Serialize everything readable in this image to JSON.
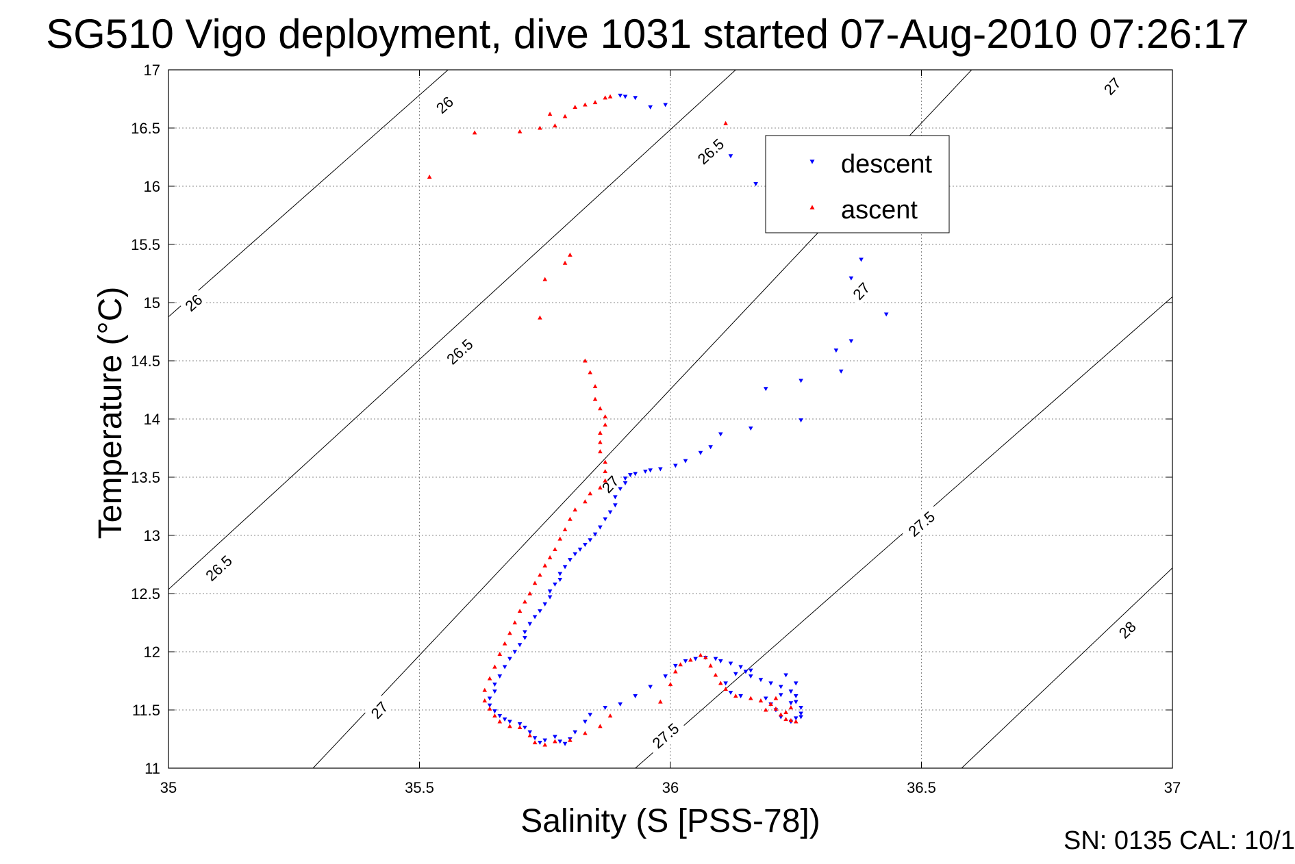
{
  "chart_data": {
    "type": "scatter",
    "title": "SG510 Vigo deployment, dive 1031 started 07-Aug-2010 07:26:17",
    "xlabel": "Salinity (S [PSS-78])",
    "ylabel": "Temperature (°C)",
    "xlim": [
      35,
      37
    ],
    "ylim": [
      11,
      17
    ],
    "xticks": [
      "35",
      "35.5",
      "36",
      "36.5",
      "37"
    ],
    "yticks": [
      "11",
      "11.5",
      "12",
      "12.5",
      "13",
      "13.5",
      "14",
      "14.5",
      "15",
      "15.5",
      "16",
      "16.5",
      "17"
    ],
    "grid": true,
    "legend": {
      "position": "top-right",
      "entries": [
        "descent",
        "ascent"
      ]
    },
    "series": [
      {
        "name": "descent",
        "marker": "triangle-down",
        "color": "#0000ff",
        "points": [
          [
            35.9,
            16.78
          ],
          [
            35.91,
            16.77
          ],
          [
            35.93,
            16.76
          ],
          [
            35.96,
            16.68
          ],
          [
            35.99,
            16.7
          ],
          [
            36.12,
            16.26
          ],
          [
            36.17,
            16.02
          ],
          [
            36.38,
            15.37
          ],
          [
            36.36,
            15.21
          ],
          [
            36.43,
            14.9
          ],
          [
            36.36,
            14.67
          ],
          [
            36.33,
            14.59
          ],
          [
            36.34,
            14.41
          ],
          [
            36.26,
            14.33
          ],
          [
            36.19,
            14.26
          ],
          [
            36.26,
            13.99
          ],
          [
            36.16,
            13.92
          ],
          [
            36.1,
            13.87
          ],
          [
            36.08,
            13.76
          ],
          [
            36.06,
            13.71
          ],
          [
            36.03,
            13.64
          ],
          [
            36.01,
            13.6
          ],
          [
            35.98,
            13.57
          ],
          [
            35.96,
            13.56
          ],
          [
            35.95,
            13.55
          ],
          [
            35.93,
            13.53
          ],
          [
            35.92,
            13.52
          ],
          [
            35.91,
            13.49
          ],
          [
            35.91,
            13.45
          ],
          [
            35.9,
            13.4
          ],
          [
            35.89,
            13.33
          ],
          [
            35.89,
            13.26
          ],
          [
            35.88,
            13.2
          ],
          [
            35.87,
            13.14
          ],
          [
            35.86,
            13.07
          ],
          [
            35.85,
            13.01
          ],
          [
            35.84,
            12.96
          ],
          [
            35.83,
            12.92
          ],
          [
            35.82,
            12.88
          ],
          [
            35.81,
            12.84
          ],
          [
            35.8,
            12.79
          ],
          [
            35.79,
            12.73
          ],
          [
            35.78,
            12.67
          ],
          [
            35.78,
            12.62
          ],
          [
            35.77,
            12.58
          ],
          [
            35.76,
            12.52
          ],
          [
            35.76,
            12.47
          ],
          [
            35.75,
            12.41
          ],
          [
            35.74,
            12.35
          ],
          [
            35.73,
            12.3
          ],
          [
            35.72,
            12.24
          ],
          [
            35.71,
            12.17
          ],
          [
            35.71,
            12.12
          ],
          [
            35.7,
            12.06
          ],
          [
            35.69,
            12.0
          ],
          [
            35.68,
            11.94
          ],
          [
            35.67,
            11.87
          ],
          [
            35.66,
            11.79
          ],
          [
            35.65,
            11.72
          ],
          [
            35.65,
            11.66
          ],
          [
            35.64,
            11.6
          ],
          [
            35.64,
            11.54
          ],
          [
            35.65,
            11.49
          ],
          [
            35.66,
            11.45
          ],
          [
            35.67,
            11.42
          ],
          [
            35.68,
            11.4
          ],
          [
            35.7,
            11.38
          ],
          [
            35.71,
            11.35
          ],
          [
            35.72,
            11.31
          ],
          [
            35.73,
            11.26
          ],
          [
            35.74,
            11.22
          ],
          [
            35.75,
            11.24
          ],
          [
            35.77,
            11.27
          ],
          [
            35.78,
            11.23
          ],
          [
            35.79,
            11.21
          ],
          [
            35.8,
            11.25
          ],
          [
            35.81,
            11.31
          ],
          [
            35.83,
            11.4
          ],
          [
            35.84,
            11.46
          ],
          [
            35.87,
            11.52
          ],
          [
            35.9,
            11.55
          ],
          [
            35.93,
            11.62
          ],
          [
            35.96,
            11.7
          ],
          [
            35.99,
            11.79
          ],
          [
            36.01,
            11.88
          ],
          [
            36.03,
            11.92
          ],
          [
            36.05,
            11.94
          ],
          [
            36.07,
            11.95
          ],
          [
            36.09,
            11.94
          ],
          [
            36.1,
            11.92
          ],
          [
            36.12,
            11.9
          ],
          [
            36.14,
            11.87
          ],
          [
            36.15,
            11.83
          ],
          [
            36.16,
            11.79
          ],
          [
            36.18,
            11.76
          ],
          [
            36.2,
            11.73
          ],
          [
            36.22,
            11.7
          ],
          [
            36.24,
            11.66
          ],
          [
            36.25,
            11.62
          ],
          [
            36.25,
            11.57
          ],
          [
            36.26,
            11.52
          ],
          [
            36.26,
            11.47
          ],
          [
            36.25,
            11.43
          ],
          [
            36.24,
            11.4
          ],
          [
            36.22,
            11.44
          ],
          [
            36.21,
            11.5
          ],
          [
            36.2,
            11.55
          ],
          [
            36.19,
            11.6
          ],
          [
            36.14,
            11.62
          ],
          [
            36.12,
            11.65
          ],
          [
            36.11,
            11.73
          ],
          [
            36.13,
            11.81
          ],
          [
            36.16,
            11.84
          ],
          [
            36.23,
            11.8
          ],
          [
            36.25,
            11.73
          ],
          [
            36.22,
            11.63
          ],
          [
            36.24,
            11.56
          ],
          [
            36.26,
            11.44
          ]
        ]
      },
      {
        "name": "ascent",
        "marker": "triangle-up",
        "color": "#ff0000",
        "points": [
          [
            35.52,
            16.08
          ],
          [
            35.61,
            16.46
          ],
          [
            35.7,
            16.47
          ],
          [
            35.74,
            16.5
          ],
          [
            35.77,
            16.52
          ],
          [
            35.76,
            16.62
          ],
          [
            35.79,
            16.6
          ],
          [
            35.81,
            16.68
          ],
          [
            35.83,
            16.7
          ],
          [
            35.85,
            16.72
          ],
          [
            35.87,
            16.76
          ],
          [
            35.88,
            16.77
          ],
          [
            36.11,
            16.54
          ],
          [
            35.8,
            15.41
          ],
          [
            35.79,
            15.34
          ],
          [
            35.75,
            15.2
          ],
          [
            35.74,
            14.87
          ],
          [
            35.83,
            14.5
          ],
          [
            35.84,
            14.4
          ],
          [
            35.85,
            14.28
          ],
          [
            35.85,
            14.17
          ],
          [
            35.86,
            14.09
          ],
          [
            35.87,
            14.02
          ],
          [
            35.87,
            13.95
          ],
          [
            35.86,
            13.88
          ],
          [
            35.86,
            13.8
          ],
          [
            35.86,
            13.72
          ],
          [
            35.87,
            13.63
          ],
          [
            35.87,
            13.55
          ],
          [
            35.87,
            13.47
          ],
          [
            35.86,
            13.41
          ],
          [
            35.84,
            13.36
          ],
          [
            35.83,
            13.29
          ],
          [
            35.81,
            13.22
          ],
          [
            35.8,
            13.14
          ],
          [
            35.79,
            13.05
          ],
          [
            35.78,
            12.97
          ],
          [
            35.77,
            12.88
          ],
          [
            35.76,
            12.81
          ],
          [
            35.75,
            12.74
          ],
          [
            35.74,
            12.66
          ],
          [
            35.73,
            12.59
          ],
          [
            35.72,
            12.5
          ],
          [
            35.71,
            12.43
          ],
          [
            35.7,
            12.35
          ],
          [
            35.69,
            12.25
          ],
          [
            35.68,
            12.16
          ],
          [
            35.67,
            12.07
          ],
          [
            35.66,
            11.98
          ],
          [
            35.65,
            11.87
          ],
          [
            35.64,
            11.77
          ],
          [
            35.63,
            11.67
          ],
          [
            35.63,
            11.58
          ],
          [
            35.64,
            11.51
          ],
          [
            35.65,
            11.45
          ],
          [
            35.66,
            11.4
          ],
          [
            35.68,
            11.36
          ],
          [
            35.7,
            11.35
          ],
          [
            35.72,
            11.28
          ],
          [
            35.73,
            11.22
          ],
          [
            35.75,
            11.2
          ],
          [
            35.77,
            11.23
          ],
          [
            35.8,
            11.24
          ],
          [
            35.83,
            11.3
          ],
          [
            35.86,
            11.36
          ],
          [
            35.88,
            11.45
          ],
          [
            35.98,
            11.57
          ],
          [
            36.0,
            11.72
          ],
          [
            36.01,
            11.83
          ],
          [
            36.02,
            11.89
          ],
          [
            36.04,
            11.93
          ],
          [
            36.06,
            11.97
          ],
          [
            36.07,
            11.95
          ],
          [
            36.08,
            11.88
          ],
          [
            36.09,
            11.8
          ],
          [
            36.1,
            11.73
          ],
          [
            36.11,
            11.68
          ],
          [
            36.13,
            11.62
          ],
          [
            36.16,
            11.6
          ],
          [
            36.18,
            11.58
          ],
          [
            36.2,
            11.55
          ],
          [
            36.21,
            11.51
          ],
          [
            36.22,
            11.46
          ],
          [
            36.23,
            11.42
          ],
          [
            36.24,
            11.41
          ],
          [
            36.25,
            11.4
          ],
          [
            36.21,
            11.6
          ],
          [
            36.19,
            11.5
          ],
          [
            36.23,
            11.48
          ],
          [
            36.24,
            11.52
          ]
        ]
      }
    ],
    "contours": [
      {
        "label": "26",
        "points": [
          [
            35.0,
            14.878
          ],
          [
            35.557,
            17.0
          ]
        ],
        "label_positions": [
          [
            35.05,
            15.0
          ],
          [
            35.55,
            16.7
          ]
        ]
      },
      {
        "label": "26.5",
        "points": [
          [
            35.0,
            12.536
          ],
          [
            36.13,
            17.0
          ]
        ],
        "label_positions": [
          [
            35.1,
            12.72
          ],
          [
            35.58,
            14.58
          ],
          [
            36.08,
            16.3
          ]
        ]
      },
      {
        "label": "27",
        "points": [
          [
            35.288,
            11.0
          ],
          [
            36.6,
            17.0
          ]
        ],
        "label_positions": [
          [
            35.42,
            11.5
          ],
          [
            35.88,
            13.44
          ],
          [
            36.38,
            15.1
          ],
          [
            36.88,
            16.86
          ]
        ]
      },
      {
        "label": "27.5",
        "points": [
          [
            35.93,
            11.0
          ],
          [
            37.0,
            15.05
          ]
        ],
        "label_positions": [
          [
            35.99,
            11.28
          ],
          [
            36.5,
            13.1
          ]
        ]
      },
      {
        "label": "28",
        "points": [
          [
            36.58,
            11.0
          ],
          [
            37.0,
            12.72
          ]
        ],
        "label_positions": [
          [
            36.91,
            12.19
          ]
        ]
      }
    ]
  },
  "footer": {
    "text": "SN: 0135  CAL: 10/1"
  }
}
